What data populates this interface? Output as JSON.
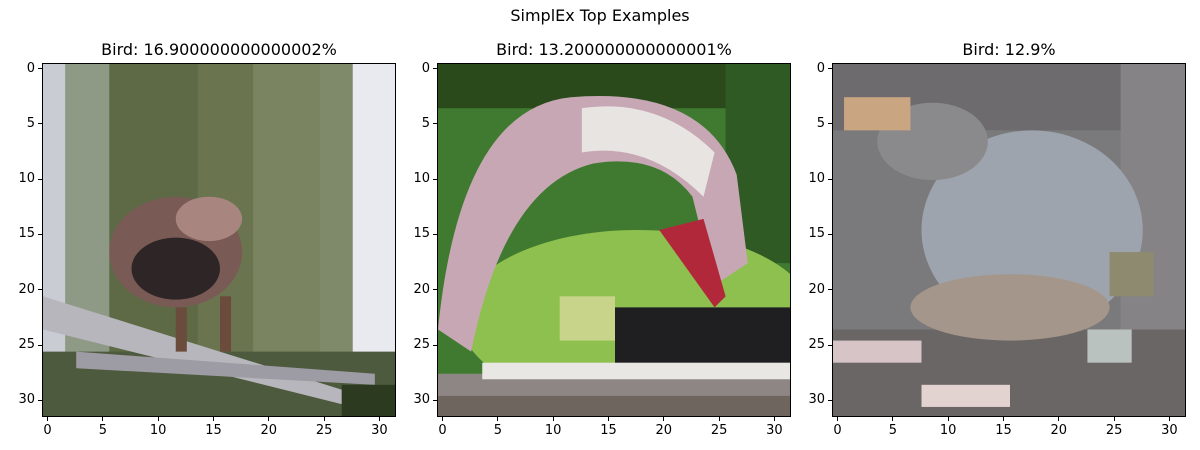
{
  "figure": {
    "title": "SimplEx Top Examples"
  },
  "panels": [
    {
      "title": "Bird: 16.900000000000002%",
      "image": "bird-perched-on-branch-green-background"
    },
    {
      "title": "Bird: 13.200000000000001%",
      "image": "pink-flamingo-feeding-on-grass"
    },
    {
      "title": "Bird: 12.9%",
      "image": "grey-bird-on-gravel"
    }
  ],
  "axes": {
    "x_ticks": [
      "0",
      "5",
      "10",
      "15",
      "20",
      "25",
      "30"
    ],
    "y_ticks": [
      "0",
      "5",
      "10",
      "15",
      "20",
      "25",
      "30"
    ],
    "xlim": [
      -0.5,
      31.5
    ],
    "ylim": [
      31.5,
      -0.5
    ]
  },
  "colors": {
    "bird1_bg": "#6f7a52",
    "bird2_bg": "#3f7a30",
    "bird3_bg": "#7a7a7c"
  }
}
